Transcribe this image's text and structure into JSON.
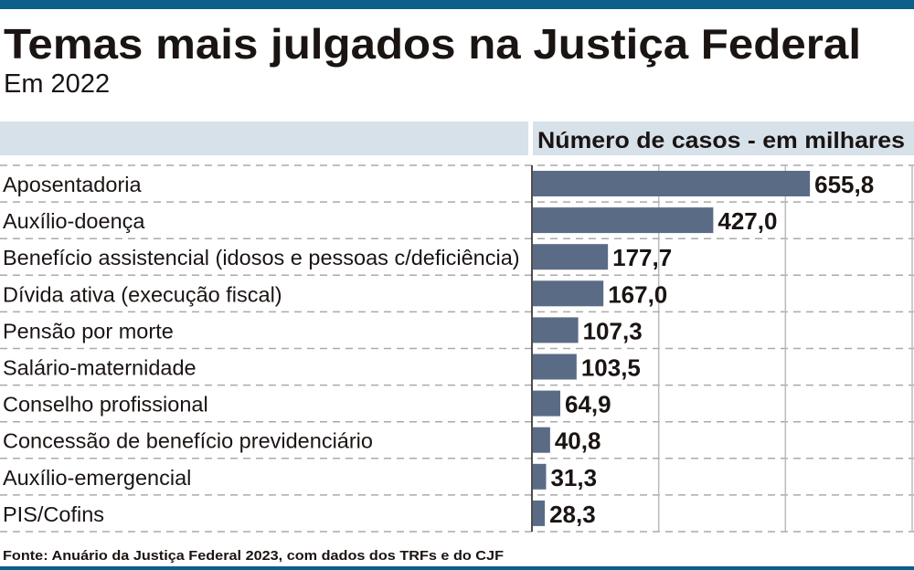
{
  "chart_data": {
    "type": "bar",
    "orientation": "horizontal",
    "title": "Temas mais julgados na Justiça Federal",
    "subtitle": "Em 2022",
    "value_header": "Número de casos - em milhares",
    "source": "Fonte: Anuário da Justiça Federal 2023, com dados dos TRFs e do CJF",
    "categories": [
      "Aposentadoria",
      "Auxílio-doença",
      "Benefício assistencial (idosos e pessoas c/deficiência)",
      "Dívida ativa (execução fiscal)",
      "Pensão por morte",
      "Salário-maternidade",
      "Conselho profissional",
      "Concessão de benefício previdenciário",
      "Auxílio-emergencial",
      "PIS/Cofins"
    ],
    "values": [
      655.8,
      427.0,
      177.7,
      167.0,
      107.3,
      103.5,
      64.9,
      40.8,
      31.3,
      28.3
    ],
    "value_labels": [
      "655,8",
      "427,0",
      "177,7",
      "167,0",
      "107,3",
      "103,5",
      "64,9",
      "40,8",
      "31,3",
      "28,3"
    ],
    "xlim": [
      0,
      900
    ],
    "gridlines_at": [
      300,
      600,
      900
    ],
    "grid": true,
    "colors": {
      "bar": "#5a6b86",
      "accent": "#0b5f8a",
      "header_band": "#d7e1ea",
      "text": "#1a1412"
    }
  }
}
